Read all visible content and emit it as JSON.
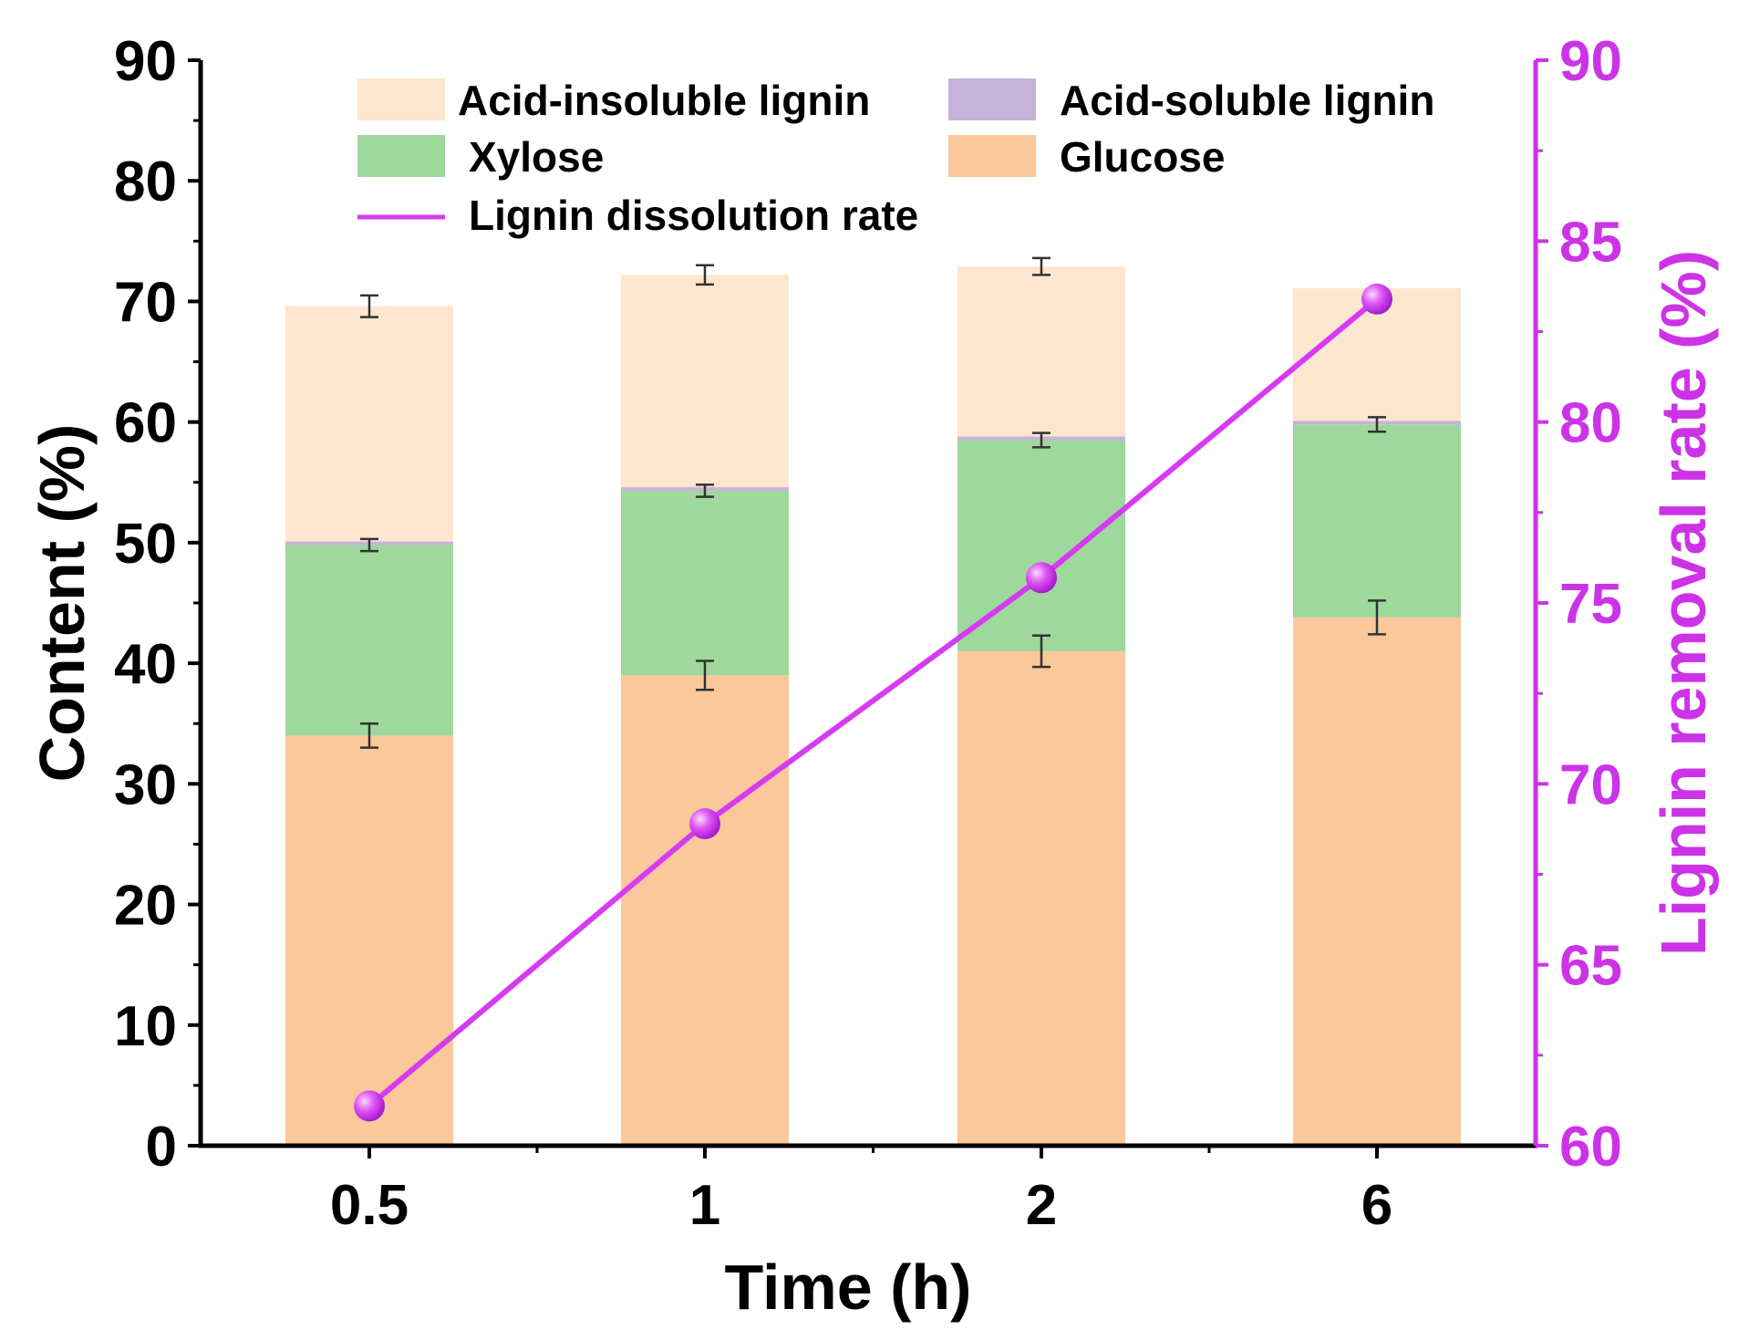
{
  "chart_data": {
    "type": "bar",
    "stacked": true,
    "categories": [
      "0.5",
      "1",
      "2",
      "6"
    ],
    "xlabel": "Time (h)",
    "ylabel": "Content (%)",
    "ylim": [
      0,
      90
    ],
    "yticks": [
      "0",
      "10",
      "20",
      "30",
      "40",
      "50",
      "60",
      "70",
      "80",
      "90"
    ],
    "y2label": "Lignin removal rate (%)",
    "y2lim": [
      60,
      90
    ],
    "y2ticks": [
      "60",
      "65",
      "70",
      "75",
      "80",
      "85",
      "90"
    ],
    "legend_position": "top",
    "series": [
      {
        "name": "Glucose",
        "values": [
          34.0,
          39.0,
          41.0,
          43.8
        ],
        "errors": [
          1.0,
          1.2,
          1.3,
          1.4
        ],
        "color": "#fac89a"
      },
      {
        "name": "Xylose",
        "values": [
          15.8,
          15.3,
          17.5,
          16.0
        ],
        "errors": [
          0.5,
          0.5,
          0.6,
          0.6
        ],
        "color": "#9ed89c"
      },
      {
        "name": "Acid-soluble lignin",
        "values": [
          0.3,
          0.3,
          0.3,
          0.3
        ],
        "errors": [
          0,
          0,
          0,
          0
        ],
        "color": "#c5b3d9"
      },
      {
        "name": "Acid-insoluble lignin",
        "values": [
          19.5,
          17.6,
          14.1,
          11.0
        ],
        "errors": [
          0.9,
          0.8,
          0.7,
          0
        ],
        "color": "#fde6cf"
      }
    ],
    "line_series": {
      "name": "Lignin dissolution rate",
      "axis": "right",
      "values": [
        61.1,
        68.9,
        75.7,
        83.4
      ],
      "color": "#d63af2"
    },
    "legend_order": [
      "Acid-insoluble lignin",
      "Acid-soluble lignin",
      "Xylose",
      "Glucose",
      "Lignin dissolution rate"
    ],
    "axis_color_right": "#cc33e6"
  }
}
